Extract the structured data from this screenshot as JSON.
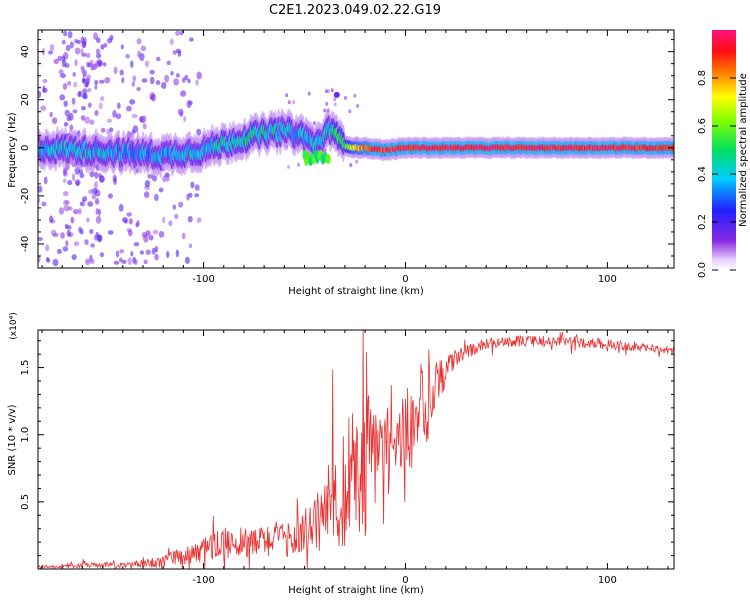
{
  "title": "C2E1.2023.049.02.22.G19",
  "chart_data": [
    {
      "type": "heatmap",
      "xlabel": "Height of straight line (km)",
      "ylabel": "Frequency (Hz)",
      "xlim": [
        -182,
        133
      ],
      "ylim": [
        -50,
        49
      ],
      "x_ticks": [
        -100,
        0,
        100
      ],
      "y_ticks": [
        -40,
        -20,
        0,
        20,
        40
      ],
      "colorbar": {
        "label": "Normalized spectral amplitude",
        "range": [
          0,
          1
        ],
        "ticks": [
          "0.0",
          "0.2",
          "0.4",
          "0.6",
          "0.8"
        ],
        "colormap": "rainbow (violet-blue-cyan-green-yellow-red-magenta)"
      },
      "ridge": {
        "x": [
          -182,
          -160,
          -140,
          -120,
          -100,
          -85,
          -70,
          -60,
          -50,
          -45,
          -40,
          -36,
          -33,
          -30,
          -25,
          -20,
          -10,
          0,
          20,
          60,
          100,
          133
        ],
        "y": [
          0,
          -1,
          -2,
          -3,
          -1,
          3,
          6,
          7,
          5,
          1,
          5,
          9,
          3,
          1,
          0,
          0,
          -1,
          0,
          0,
          0,
          0,
          0
        ],
        "amplitude": [
          0.35,
          0.4,
          0.35,
          0.35,
          0.4,
          0.45,
          0.45,
          0.4,
          0.35,
          0.4,
          0.4,
          0.45,
          0.5,
          0.55,
          0.75,
          0.85,
          0.9,
          0.95,
          0.95,
          0.95,
          0.95,
          0.9
        ]
      }
    },
    {
      "type": "line",
      "xlabel": "Height of straight line (km)",
      "ylabel": "SNR (10 * v/v)",
      "y_multiplier": "(x10⁴)",
      "xlim": [
        -182,
        133
      ],
      "ylim": [
        0,
        1.78
      ],
      "x_ticks": [
        -100,
        0,
        100
      ],
      "y_tick_labels": [
        "0.5",
        "1.0",
        "1.5"
      ],
      "y_ticks": [
        0.5,
        1.0,
        1.5
      ],
      "series": [
        {
          "color": "#e83030",
          "x": [
            -182,
            -170,
            -160,
            -150,
            -140,
            -130,
            -120,
            -110,
            -100,
            -95,
            -90,
            -85,
            -80,
            -75,
            -70,
            -65,
            -60,
            -55,
            -50,
            -45,
            -40,
            -35,
            -30,
            -27,
            -25,
            -22,
            -20,
            -18,
            -15,
            -12,
            -10,
            -5,
            0,
            5,
            8,
            10,
            12,
            14,
            18,
            20,
            25,
            30,
            40,
            50,
            60,
            70,
            80,
            90,
            100,
            110,
            120,
            133
          ],
          "y": [
            0.02,
            0.02,
            0.03,
            0.03,
            0.03,
            0.04,
            0.06,
            0.1,
            0.15,
            0.18,
            0.2,
            0.22,
            0.22,
            0.2,
            0.22,
            0.25,
            0.22,
            0.25,
            0.3,
            0.35,
            0.45,
            0.55,
            0.6,
            0.75,
            0.7,
            0.72,
            0.78,
            0.95,
            0.9,
            0.95,
            0.95,
            1.0,
            1.1,
            1.1,
            1.25,
            0.95,
            1.3,
            1.4,
            1.45,
            1.5,
            1.58,
            1.62,
            1.68,
            1.7,
            1.7,
            1.7,
            1.7,
            1.69,
            1.68,
            1.66,
            1.65,
            1.63
          ],
          "noise": [
            0.01,
            0.01,
            0.02,
            0.02,
            0.02,
            0.03,
            0.05,
            0.07,
            0.09,
            0.1,
            0.12,
            0.13,
            0.12,
            0.12,
            0.13,
            0.13,
            0.12,
            0.14,
            0.16,
            0.2,
            0.3,
            0.45,
            0.45,
            0.55,
            0.5,
            0.45,
            0.5,
            0.45,
            0.4,
            0.35,
            0.3,
            0.3,
            0.3,
            0.35,
            0.35,
            0.3,
            0.28,
            0.2,
            0.15,
            0.12,
            0.07,
            0.05,
            0.04,
            0.04,
            0.04,
            0.04,
            0.04,
            0.04,
            0.04,
            0.03,
            0.03,
            0.03
          ]
        }
      ]
    }
  ]
}
